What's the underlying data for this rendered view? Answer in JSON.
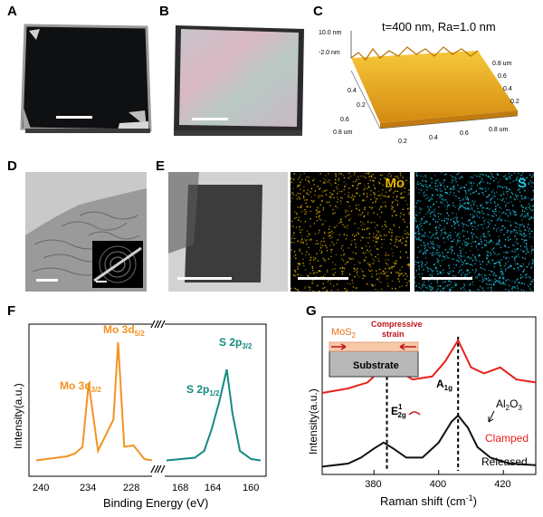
{
  "panel_labels": {
    "A": "A",
    "B": "B",
    "C": "C",
    "D": "D",
    "E": "E",
    "F": "F",
    "G": "G"
  },
  "panel_c": {
    "caption": "t=400 nm, Ra=1.0 nm",
    "z_top": "10.0 nm",
    "z_bottom": "-2.0 nm",
    "axis_ticks_right": [
      "0.2",
      "0.4",
      "0.6",
      "0.8 um"
    ],
    "axis_ticks_left": [
      "0.2",
      "0.4",
      "0.6",
      "0.8 um"
    ],
    "axis_ticks_side": [
      "0.2",
      "0.4",
      "0.6",
      "0.8 um"
    ]
  },
  "panel_e": {
    "mo_label": "Mo",
    "s_label": "S",
    "mo_color": "#e0b400",
    "s_color": "#1cc8e8"
  },
  "chart_data": [
    {
      "type": "line",
      "panel": "F",
      "xlabel": "Binding Energy (eV)",
      "ylabel": "Intensity(a.u.)",
      "x_ticks_left": [
        "240",
        "234",
        "228"
      ],
      "x_ticks_right": [
        "168",
        "164",
        "160"
      ],
      "series": [
        {
          "color": "#f39323",
          "x": [
            240,
            236,
            235,
            234,
            233.2,
            232,
            230,
            229.4,
            228.6,
            227.4,
            226,
            225
          ],
          "y": [
            0.05,
            0.08,
            0.1,
            0.15,
            0.62,
            0.12,
            0.35,
            0.92,
            0.15,
            0.16,
            0.06,
            0.05
          ]
        },
        {
          "color": "#138a80",
          "x": [
            169,
            166,
            165,
            164.2,
            163.4,
            162.6,
            162.0,
            161.2,
            160,
            159
          ],
          "y": [
            0.05,
            0.07,
            0.12,
            0.28,
            0.48,
            0.72,
            0.4,
            0.12,
            0.06,
            0.05
          ]
        }
      ],
      "annotations": [
        "Mo 3d3/2",
        "Mo 3d5/2",
        "S 2p1/2",
        "S 2p3/2"
      ]
    },
    {
      "type": "line",
      "panel": "G",
      "xlabel": "Raman shift (cm-1)",
      "ylabel": "Intensity(a.u.)",
      "xlim": [
        364,
        430
      ],
      "x_ticks": [
        380,
        400,
        420
      ],
      "series": [
        {
          "name": "Clamped",
          "color": "#e8201a",
          "x": [
            364,
            372,
            378,
            382,
            385,
            388,
            392,
            398,
            402,
            406,
            410,
            414,
            419,
            424,
            430
          ],
          "y": [
            0.53,
            0.56,
            0.6,
            0.68,
            0.72,
            0.67,
            0.62,
            0.64,
            0.74,
            0.88,
            0.7,
            0.66,
            0.7,
            0.62,
            0.6
          ]
        },
        {
          "name": "Released",
          "color": "#111111",
          "x": [
            364,
            372,
            376,
            380,
            383,
            386,
            390,
            395,
            400,
            404,
            406,
            409,
            412,
            416,
            422,
            430
          ],
          "y": [
            0.04,
            0.06,
            0.1,
            0.16,
            0.2,
            0.16,
            0.1,
            0.1,
            0.2,
            0.34,
            0.38,
            0.3,
            0.17,
            0.1,
            0.06,
            0.05
          ]
        }
      ],
      "vlines": [
        384,
        406
      ],
      "inset": {
        "material": "MoS2",
        "substrate": "Substrate",
        "strain": "Compressive strain"
      },
      "peak_labels": [
        "E12g",
        "A1g",
        "Al2O3"
      ],
      "curve_labels": [
        "Clamped",
        "Released"
      ]
    }
  ]
}
